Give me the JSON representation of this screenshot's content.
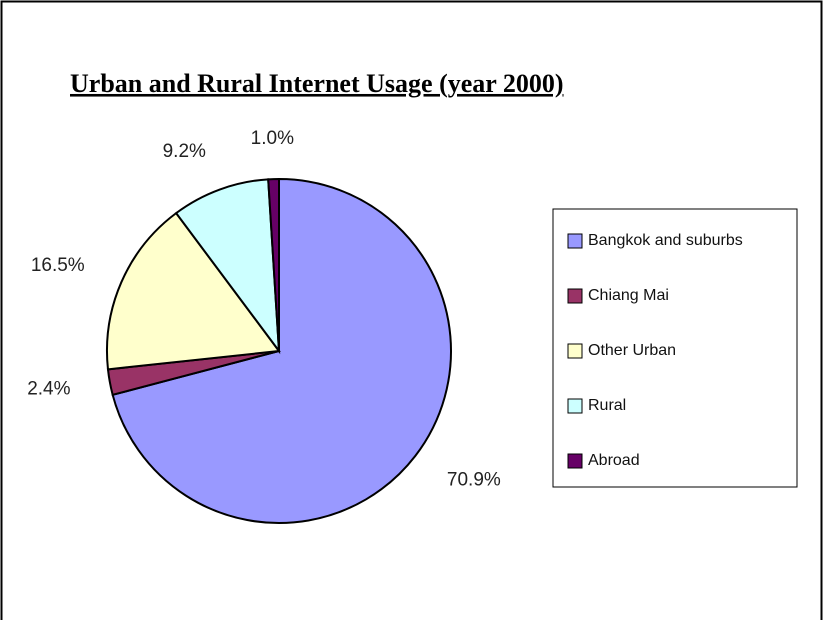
{
  "chart_data": {
    "type": "pie",
    "title": "Urban and Rural Internet Usage (year 2000)",
    "categories": [
      "Bangkok and suburbs",
      "Chiang Mai",
      "Other Urban",
      "Rural",
      "Abroad"
    ],
    "values": [
      70.9,
      2.4,
      16.5,
      9.2,
      1.0
    ],
    "value_labels": [
      "70.9%",
      "2.4%",
      "16.5%",
      "9.2%",
      "1.0%"
    ],
    "colors": [
      "#9999ff",
      "#993366",
      "#ffffcc",
      "#ccffff",
      "#660066"
    ],
    "legend": "right"
  }
}
